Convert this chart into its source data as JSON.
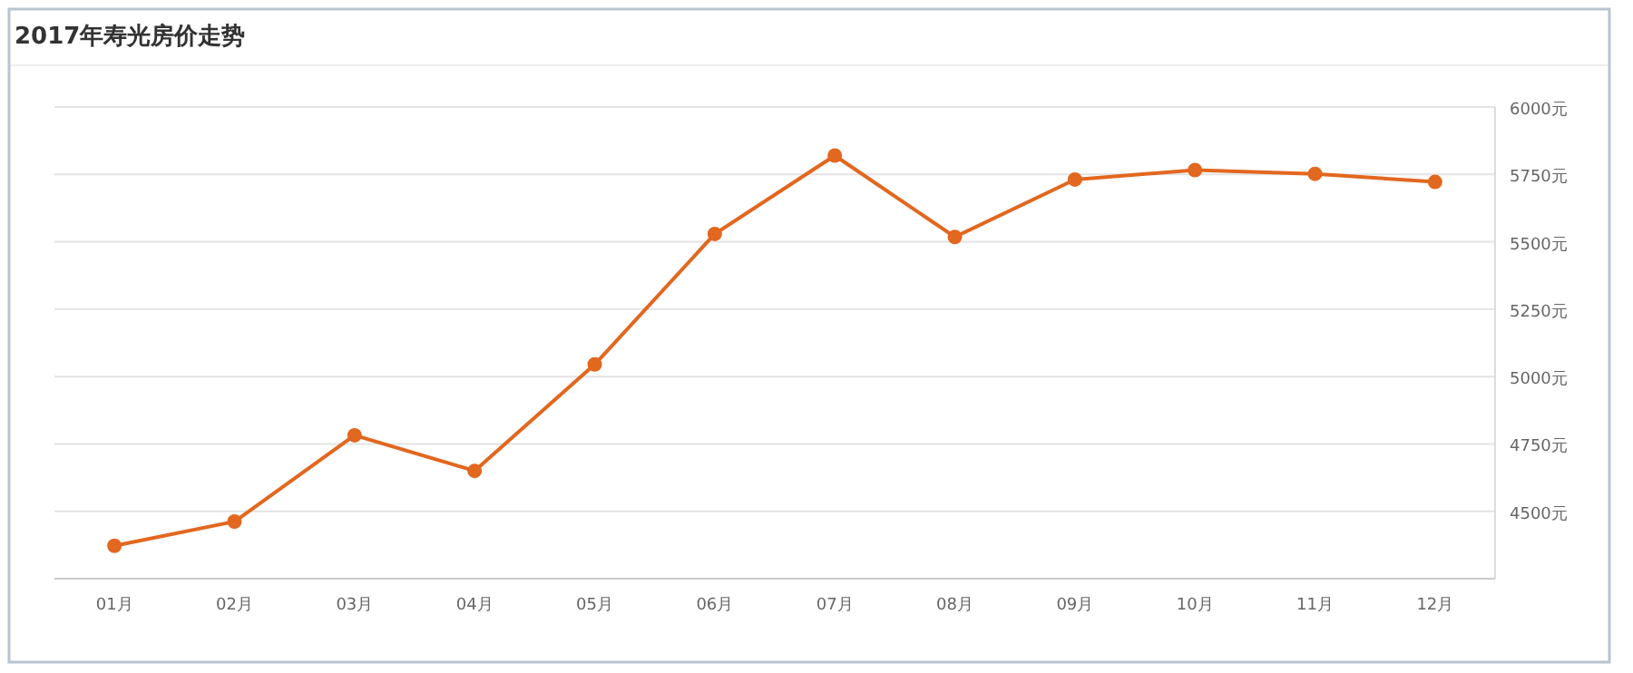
{
  "chart_data": {
    "type": "line",
    "title": "2017年寿光房价走势",
    "categories": [
      "01月",
      "02月",
      "03月",
      "04月",
      "05月",
      "06月",
      "07月",
      "08月",
      "09月",
      "10月",
      "11月",
      "12月"
    ],
    "series": [
      {
        "color": "#e2671f",
        "values": [
          4372,
          4462,
          4782,
          4650,
          5045,
          5529,
          5820,
          5518,
          5731,
          5766,
          5752,
          5722
        ]
      }
    ],
    "ylim": [
      4250,
      6000
    ],
    "yticks": [
      {
        "value": 4500,
        "label": "4500元"
      },
      {
        "value": 4750,
        "label": "4750元"
      },
      {
        "value": 5000,
        "label": "5000元"
      },
      {
        "value": 5250,
        "label": "5250元"
      },
      {
        "value": 5500,
        "label": "5500元"
      },
      {
        "value": 5750,
        "label": "5750元"
      },
      {
        "value": 6000,
        "label": "6000元"
      }
    ],
    "grid": "y",
    "marker": "circle",
    "line_style": "solid"
  }
}
